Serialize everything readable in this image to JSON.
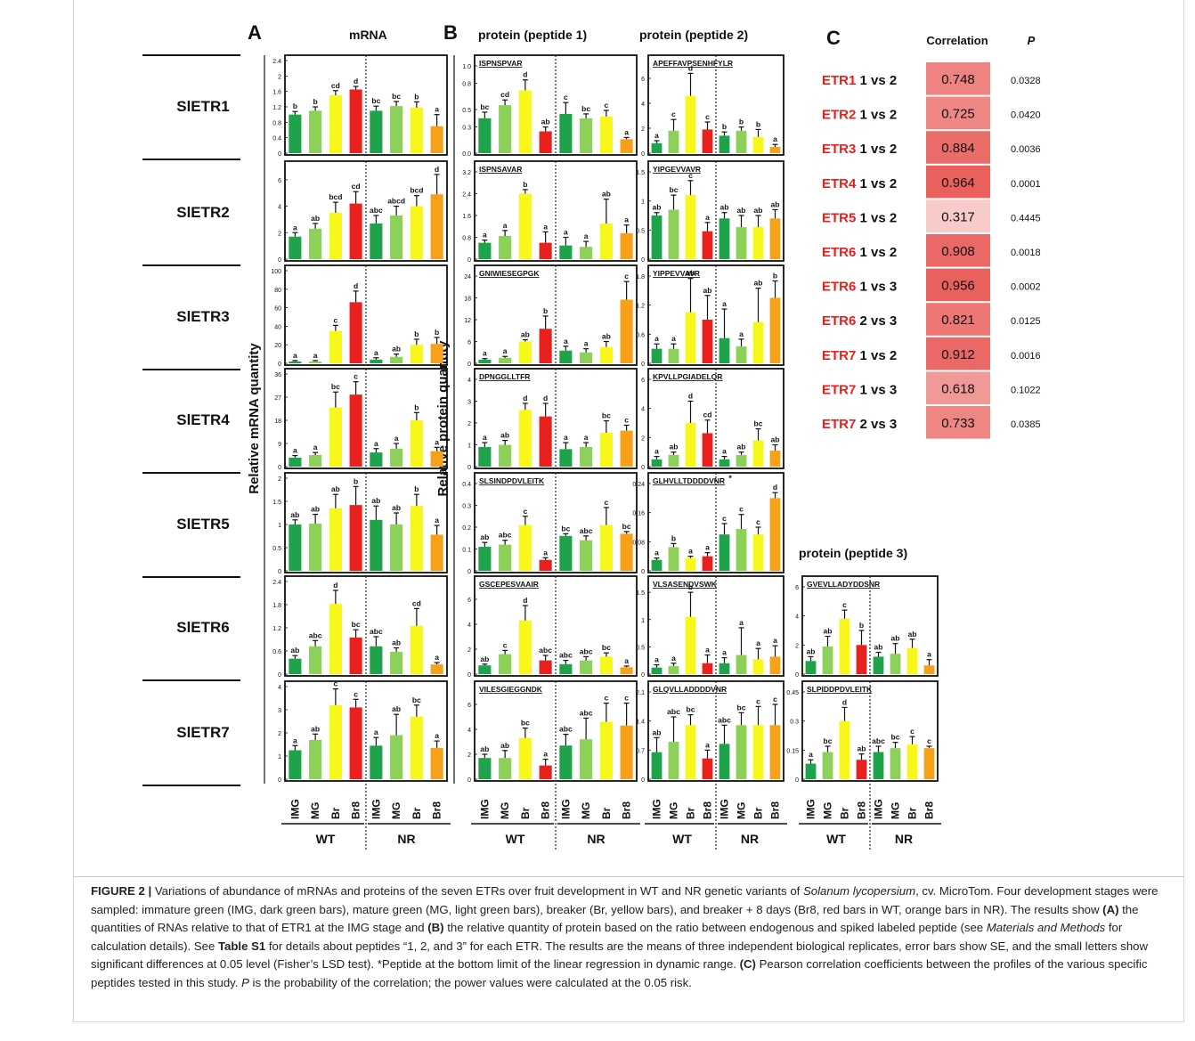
{
  "chart_data": {
    "type": "bar",
    "panel_labels": {
      "A": "A",
      "B": "B",
      "C": "C"
    },
    "column_titles": {
      "mrna": "mRNA",
      "pep1": "protein (peptide 1)",
      "pep2": "protein (peptide 2)",
      "pep3": "protein (peptide 3)"
    },
    "axis_labels": {
      "mrna_y": "Relative  mRNA quantity",
      "protein_y": "Relative protein quantity"
    },
    "stages": [
      "IMG",
      "MG",
      "Br",
      "Br8"
    ],
    "groups": [
      "WT",
      "NR"
    ],
    "stage_colors": {
      "IMG": "#1fa34a",
      "MG": "#8dd05a",
      "Br": "#f7f71a",
      "Br8_WT": "#e8201e",
      "Br8_NR": "#f7a11a"
    },
    "genes": [
      "SlETR1",
      "SlETR2",
      "SlETR3",
      "SlETR4",
      "SlETR5",
      "SlETR6",
      "SlETR7"
    ],
    "mrna": [
      {
        "gene": "SlETR1",
        "ymax": 2.4,
        "ticks": [
          "0",
          "0.4",
          "0.8",
          "1.2",
          "1.6",
          "2",
          "2.4"
        ],
        "values": [
          1.0,
          1.1,
          1.5,
          1.65,
          1.1,
          1.22,
          1.18,
          0.7
        ],
        "errors": [
          0.08,
          0.1,
          0.12,
          0.08,
          0.12,
          0.12,
          0.15,
          0.3
        ],
        "letters": [
          "b",
          "b",
          "cd",
          "d",
          "bc",
          "bc",
          "b",
          "a"
        ]
      },
      {
        "gene": "SlETR2",
        "ymax": 7,
        "ticks": [
          "0",
          "2",
          "4",
          "6"
        ],
        "values": [
          1.7,
          2.3,
          3.5,
          4.2,
          2.7,
          3.3,
          4.0,
          4.9
        ],
        "errors": [
          0.3,
          0.4,
          0.8,
          0.9,
          0.6,
          0.7,
          0.8,
          1.5
        ],
        "letters": [
          "a",
          "ab",
          "bcd",
          "cd",
          "abc",
          "abcd",
          "bcd",
          "d"
        ]
      },
      {
        "gene": "SlETR3",
        "ymax": 100,
        "ticks": [
          "0",
          "20",
          "40",
          "60",
          "80",
          "100"
        ],
        "values": [
          2,
          2,
          35,
          66,
          4,
          7,
          20,
          21
        ],
        "errors": [
          1,
          1,
          6,
          12,
          2,
          3,
          6,
          7
        ],
        "letters": [
          "a",
          "a",
          "c",
          "d",
          "a",
          "ab",
          "b",
          "b"
        ]
      },
      {
        "gene": "SlETR4",
        "ymax": 36,
        "ticks": [
          "0",
          "9",
          "18",
          "27",
          "36"
        ],
        "values": [
          3.5,
          4.5,
          23,
          28,
          5.5,
          7,
          18,
          6
        ],
        "errors": [
          0.8,
          1.0,
          6,
          5,
          1.5,
          2,
          3,
          1.5
        ],
        "letters": [
          "a",
          "a",
          "bc",
          "c",
          "a",
          "a",
          "b",
          "a"
        ]
      },
      {
        "gene": "SlETR5",
        "ymax": 2,
        "ticks": [
          "0",
          "0.5",
          "1",
          "1.5",
          "2"
        ],
        "values": [
          1.0,
          1.02,
          1.35,
          1.42,
          1.1,
          1.0,
          1.4,
          0.78
        ],
        "errors": [
          0.1,
          0.2,
          0.3,
          0.4,
          0.3,
          0.25,
          0.25,
          0.2
        ],
        "letters": [
          "ab",
          "ab",
          "ab",
          "b",
          "ab",
          "ab",
          "b",
          "a"
        ]
      },
      {
        "gene": "SlETR6",
        "ymax": 2.4,
        "ticks": [
          "0",
          "0.6",
          "1.2",
          "1.8",
          "2.4"
        ],
        "values": [
          0.4,
          0.72,
          1.82,
          0.95,
          0.72,
          0.58,
          1.25,
          0.25
        ],
        "errors": [
          0.08,
          0.15,
          0.35,
          0.2,
          0.25,
          0.1,
          0.45,
          0.05
        ],
        "letters": [
          "ab",
          "abc",
          "d",
          "bc",
          "abc",
          "ab",
          "cd",
          "a"
        ]
      },
      {
        "gene": "SlETR7",
        "ymax": 4,
        "ticks": [
          "0",
          "1",
          "2",
          "3",
          "4"
        ],
        "values": [
          1.25,
          1.7,
          3.2,
          3.1,
          1.45,
          1.9,
          2.7,
          1.35
        ],
        "errors": [
          0.2,
          0.25,
          0.7,
          0.35,
          0.35,
          0.9,
          0.5,
          0.3
        ],
        "letters": [
          "a",
          "ab",
          "c",
          "c",
          "a",
          "ab",
          "bc",
          "a"
        ]
      }
    ],
    "pep1": [
      {
        "peptide": "ISPNSPVAR",
        "ymax": 1.0,
        "ticks": [
          "0.0",
          "0.3",
          "0.5",
          "0.8",
          "1.0"
        ],
        "values": [
          0.4,
          0.55,
          0.72,
          0.25,
          0.45,
          0.4,
          0.42,
          0.16
        ],
        "errors": [
          0.07,
          0.06,
          0.12,
          0.05,
          0.13,
          0.05,
          0.07,
          0.02
        ],
        "letters": [
          "bc",
          "cd",
          "d",
          "ab",
          "c",
          "bc",
          "c",
          "a"
        ]
      },
      {
        "peptide": "ISPNSAVAR",
        "ymax": 3.2,
        "ticks": [
          "0",
          "0.8",
          "1.6",
          "2.4",
          "3.2"
        ],
        "values": [
          0.6,
          0.85,
          2.4,
          0.6,
          0.5,
          0.45,
          1.3,
          0.95
        ],
        "errors": [
          0.1,
          0.2,
          0.15,
          0.4,
          0.3,
          0.2,
          0.9,
          0.3
        ],
        "letters": [
          "a",
          "a",
          "b",
          "a",
          "a",
          "a",
          "ab",
          "a"
        ]
      },
      {
        "peptide": "GNIWIESEGPGK",
        "ymax": 24,
        "ticks": [
          "0",
          "6",
          "12",
          "18",
          "24"
        ],
        "values": [
          1.0,
          1.5,
          6,
          9.5,
          3.5,
          3,
          4.5,
          17.5
        ],
        "errors": [
          0.3,
          0.4,
          0.5,
          3.5,
          1.2,
          1.0,
          1.5,
          5
        ],
        "letters": [
          "a",
          "a",
          "ab",
          "b",
          "a",
          "a",
          "ab",
          "c"
        ]
      },
      {
        "peptide": "DPNGGLLTFR",
        "ymax": 4,
        "ticks": [
          "0",
          "1",
          "2",
          "3",
          "4"
        ],
        "values": [
          0.9,
          1.0,
          2.6,
          2.3,
          0.8,
          0.9,
          1.55,
          1.65
        ],
        "errors": [
          0.2,
          0.2,
          0.3,
          0.6,
          0.3,
          0.2,
          0.55,
          0.25
        ],
        "letters": [
          "a",
          "ab",
          "d",
          "d",
          "a",
          "a",
          "bc",
          "c"
        ]
      },
      {
        "peptide": "SLSINDPDVLEITK",
        "ymax": 0.4,
        "ticks": [
          "0",
          "0.1",
          "0.2",
          "0.3",
          "0.4"
        ],
        "values": [
          0.11,
          0.12,
          0.21,
          0.05,
          0.16,
          0.14,
          0.21,
          0.17
        ],
        "errors": [
          0.02,
          0.02,
          0.04,
          0.01,
          0.01,
          0.02,
          0.08,
          0.01
        ],
        "letters": [
          "ab",
          "abc",
          "c",
          "a",
          "bc",
          "abc",
          "c",
          "bc"
        ]
      },
      {
        "peptide": "GSCEPESVAAIR",
        "ymax": 7,
        "ticks": [
          "0",
          "2",
          "4",
          "6"
        ],
        "values": [
          0.7,
          1.6,
          4.3,
          1.1,
          0.8,
          1.1,
          1.4,
          0.55
        ],
        "errors": [
          0.1,
          0.3,
          1.2,
          0.4,
          0.3,
          0.3,
          0.3,
          0.1
        ],
        "letters": [
          "ab",
          "c",
          "d",
          "abc",
          "abc",
          "abc",
          "bc",
          "a"
        ]
      },
      {
        "peptide": "VILESGIEGGNDK",
        "ymax": 7,
        "ticks": [
          "0",
          "2",
          "4",
          "6"
        ],
        "values": [
          1.7,
          1.7,
          3.3,
          1.1,
          2.7,
          3.2,
          4.6,
          4.3
        ],
        "errors": [
          0.3,
          0.6,
          0.8,
          0.5,
          0.9,
          1.7,
          1.5,
          1.8
        ],
        "letters": [
          "ab",
          "ab",
          "bc",
          "a",
          "abc",
          "abc",
          "c",
          "c"
        ]
      }
    ],
    "pep2": [
      {
        "peptide": "APEFFAVPSENHFYLR",
        "ymax": 7,
        "ticks": [
          "0",
          "2",
          "4",
          "6"
        ],
        "values": [
          0.8,
          1.8,
          4.6,
          1.9,
          1.4,
          1.8,
          1.3,
          0.5
        ],
        "errors": [
          0.2,
          0.9,
          1.8,
          0.6,
          0.3,
          0.3,
          0.6,
          0.2
        ],
        "letters": [
          "a",
          "c",
          "d",
          "c",
          "b",
          "b",
          "b",
          "a"
        ]
      },
      {
        "peptide": "YIPGEVVAVR",
        "ymax": 1.5,
        "ticks": [
          "0",
          "0.5",
          "1",
          "1.5"
        ],
        "values": [
          0.75,
          0.85,
          1.1,
          0.48,
          0.7,
          0.55,
          0.55,
          0.7
        ],
        "errors": [
          0.05,
          0.25,
          0.25,
          0.15,
          0.1,
          0.2,
          0.2,
          0.15
        ],
        "letters": [
          "ab",
          "bc",
          "c",
          "a",
          "ab",
          "ab",
          "ab",
          "ab"
        ]
      },
      {
        "peptide": "YIPPEVVAVR",
        "ymax": 1.8,
        "ticks": [
          "0",
          "0.6",
          "1.2",
          "1.8"
        ],
        "values": [
          0.3,
          0.3,
          1.05,
          0.9,
          0.52,
          0.35,
          0.85,
          1.35
        ],
        "errors": [
          0.1,
          0.1,
          0.7,
          0.5,
          0.6,
          0.15,
          0.7,
          0.35
        ],
        "letters": [
          "a",
          "a",
          "ab",
          "ab",
          "a",
          "a",
          "ab",
          "b"
        ]
      },
      {
        "peptide": "KPVLLPGIADELQR",
        "ymax": 6,
        "ticks": [
          "0",
          "2",
          "4",
          "6"
        ],
        "values": [
          0.5,
          0.8,
          3.0,
          2.3,
          0.5,
          0.8,
          1.8,
          1.1
        ],
        "errors": [
          0.2,
          0.2,
          1.5,
          0.9,
          0.2,
          0.2,
          0.8,
          0.4
        ],
        "letters": [
          "a",
          "ab",
          "d",
          "cd",
          "a",
          "ab",
          "bc",
          "ab"
        ]
      },
      {
        "peptide": "GLHVLLTDDDDVNR",
        "ymax": 0.24,
        "ticks": [
          "0",
          "0.08",
          "0.16",
          "0.24"
        ],
        "values": [
          0.03,
          0.065,
          0.035,
          0.04,
          0.1,
          0.115,
          0.1,
          0.2
        ],
        "errors": [
          0.005,
          0.01,
          0.005,
          0.01,
          0.03,
          0.04,
          0.02,
          0.015
        ],
        "letters": [
          "a",
          "b",
          "a",
          "a",
          "c",
          "c",
          "c",
          "d"
        ]
      },
      {
        "peptide": "VLSASENDVSWK",
        "ymax": 1.6,
        "ticks": [
          "0",
          "0.5",
          "1",
          "1.5"
        ],
        "values": [
          0.12,
          0.15,
          1.05,
          0.2,
          0.2,
          0.35,
          0.27,
          0.32
        ],
        "errors": [
          0.05,
          0.05,
          0.45,
          0.15,
          0.1,
          0.5,
          0.2,
          0.2
        ],
        "letters": [
          "a",
          "a",
          "b",
          "a",
          "a",
          "a",
          "a",
          "a"
        ]
      },
      {
        "peptide": "GLQVLLADDDDVNR",
        "ymax": 2.1,
        "ticks": [
          "0",
          "0.7",
          "1.4",
          "2.1"
        ],
        "values": [
          0.65,
          0.9,
          1.3,
          0.5,
          0.85,
          1.3,
          1.3,
          1.3
        ],
        "errors": [
          0.35,
          0.6,
          0.25,
          0.2,
          0.45,
          0.3,
          0.45,
          0.5
        ],
        "letters": [
          "ab",
          "abc",
          "bc",
          "a",
          "abc",
          "bc",
          "c",
          "c"
        ]
      }
    ],
    "pep3": [
      {
        "peptide": "GVEVLLADYDDSNR",
        "ymax": 6,
        "ticks": [
          "0",
          "2",
          "4",
          "6"
        ],
        "values": [
          0.9,
          1.9,
          3.8,
          2.0,
          1.2,
          1.4,
          1.8,
          0.6
        ],
        "errors": [
          0.3,
          0.7,
          0.6,
          1.0,
          0.3,
          0.7,
          0.6,
          0.4
        ],
        "letters": [
          "ab",
          "ab",
          "c",
          "b",
          "ab",
          "ab",
          "ab",
          "a"
        ]
      },
      {
        "peptide": "SLPIDDPDVLEITK",
        "ymax": 0.45,
        "ticks": [
          "0",
          "0.15",
          "0.3",
          "0.45"
        ],
        "values": [
          0.08,
          0.14,
          0.3,
          0.1,
          0.14,
          0.16,
          0.18,
          0.16
        ],
        "errors": [
          0.02,
          0.03,
          0.07,
          0.03,
          0.03,
          0.03,
          0.04,
          0.01
        ],
        "letters": [
          "a",
          "bc",
          "d",
          "ab",
          "abc",
          "bc",
          "c",
          "c"
        ]
      }
    ],
    "asterisk_note": "*",
    "correlation": {
      "headers": [
        "Correlation",
        "P"
      ],
      "rows": [
        {
          "etr": "ETR1",
          "label": "1 vs 2",
          "r": 0.748,
          "r_text": "0.748",
          "p": "0.0328"
        },
        {
          "etr": "ETR2",
          "label": "1 vs 2",
          "r": 0.725,
          "r_text": "0.725",
          "p": "0.0420"
        },
        {
          "etr": "ETR3",
          "label": "1 vs 2",
          "r": 0.884,
          "r_text": "0.884",
          "p": "0.0036"
        },
        {
          "etr": "ETR4",
          "label": "1 vs 2",
          "r": 0.964,
          "r_text": "0.964",
          "p": "0.0001"
        },
        {
          "etr": "ETR5",
          "label": "1 vs 2",
          "r": 0.317,
          "r_text": "0.317",
          "p": "0.4445"
        },
        {
          "etr": "ETR6",
          "label": "1 vs 2",
          "r": 0.908,
          "r_text": "0.908",
          "p": "0.0018"
        },
        {
          "etr": "ETR6",
          "label": "1 vs 3",
          "r": 0.956,
          "r_text": "0.956",
          "p": "0.0002"
        },
        {
          "etr": "ETR6",
          "label": "2 vs 3",
          "r": 0.821,
          "r_text": "0.821",
          "p": "0.0125"
        },
        {
          "etr": "ETR7",
          "label": "1 vs 2",
          "r": 0.912,
          "r_text": "0.912",
          "p": "0.0016"
        },
        {
          "etr": "ETR7",
          "label": "1 vs 3",
          "r": 0.618,
          "r_text": "0.618",
          "p": "0.1022"
        },
        {
          "etr": "ETR7",
          "label": "2 vs 3",
          "r": 0.733,
          "r_text": "0.733",
          "p": "0.0385"
        }
      ]
    }
  },
  "caption": {
    "fig_label": "FIGURE 2 |",
    "t1": " Variations of abundance of mRNAs and proteins of the seven ETRs over fruit development in WT and NR genetic variants of ",
    "species": "Solanum lycopersium",
    "t2": ", cv. MicroTom. Four development stages were sampled: immature green (IMG, dark green bars), mature green (MG, light green bars), breaker (Br, yellow bars), and breaker + 8 days (Br8, red bars in WT, orange bars in NR). The results show ",
    "a": "(A)",
    "t3": " the quantities of RNAs relative to that of ETR1 at the IMG stage and ",
    "b": "(B)",
    "t4": " the relative quantity of protein based on the ratio between endogenous and spiked labeled peptide (see ",
    "methods": "Materials and Methods",
    "t5": " for calculation details). See ",
    "table": "Table S1",
    "t6": " for details about peptides “1, 2, and 3” for each ETR. The results are the means of three independent biological replicates, error bars show SE, and the small letters show significant differences at 0.05 level (Fisher’s LSD test). *Peptide at the bottom limit of the linear regression in dynamic range. ",
    "c": "(C)",
    "t7": " Pearson correlation coefficients between the profiles of the various specific peptides tested in this study. ",
    "p": "P",
    "t8": " is the probability of the correlation; the power values were calculated at the 0.05 risk."
  }
}
